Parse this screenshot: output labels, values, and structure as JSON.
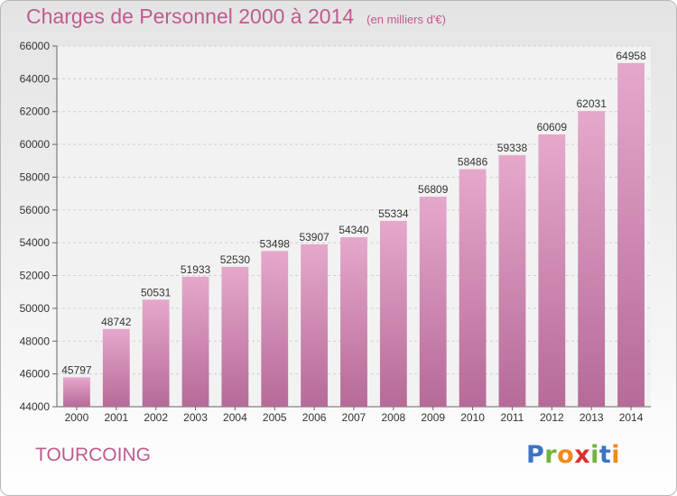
{
  "chart_data": {
    "type": "bar",
    "title": "Charges de Personnel 2000 à 2014",
    "subtitle": "(en milliers d'€)",
    "categories": [
      "2000",
      "2001",
      "2002",
      "2003",
      "2004",
      "2005",
      "2006",
      "2007",
      "2008",
      "2009",
      "2010",
      "2011",
      "2012",
      "2013",
      "2014"
    ],
    "values": [
      45797,
      48742,
      50531,
      51933,
      52530,
      53498,
      53907,
      54340,
      55334,
      56809,
      58486,
      59338,
      60609,
      62031,
      64958
    ],
    "ylim": [
      44000,
      66000
    ],
    "yticks": [
      44000,
      46000,
      48000,
      50000,
      52000,
      54000,
      56000,
      58000,
      60000,
      62000,
      64000,
      66000
    ],
    "grid": true,
    "bar_color_top": "#e5a8cb",
    "bar_color_bottom": "#b66a98"
  },
  "footer": {
    "city": "TOURCOING",
    "logo_letters": [
      {
        "char": "P",
        "color": "#3b74c4"
      },
      {
        "char": "r",
        "color": "#6fb43c"
      },
      {
        "char": "o",
        "color": "#f08a1e"
      },
      {
        "char": "x",
        "color": "#d8322e"
      },
      {
        "char": "i",
        "color": "#6fb43c"
      },
      {
        "char": "t",
        "color": "#3b74c4"
      },
      {
        "char": "i",
        "color": "#f08a1e"
      }
    ]
  },
  "colors": {
    "accent": "#c05a8f"
  }
}
